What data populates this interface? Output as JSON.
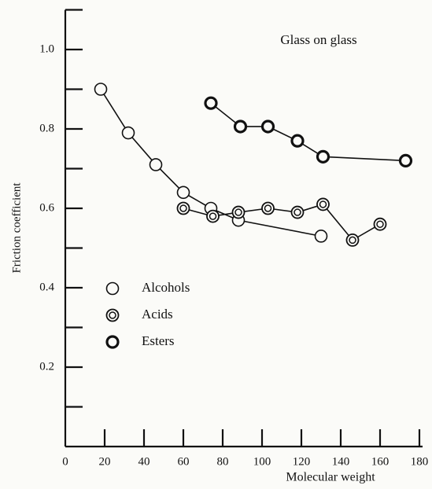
{
  "chart_data": {
    "type": "line",
    "annotation": "Glass on glass",
    "xlabel": "Molecular weight",
    "ylabel": "Friction coefficient",
    "xlim": [
      0,
      180
    ],
    "xticks": [
      0,
      20,
      40,
      60,
      80,
      100,
      120,
      140,
      160,
      180
    ],
    "ylim": [
      0,
      1.1
    ],
    "yticks": [
      0.2,
      0.4,
      0.6,
      0.8,
      {
        "value": 1,
        "label": "1.0"
      }
    ],
    "yminorticks": [
      0.1,
      0.3,
      0.5,
      0.7,
      0.9,
      1.1
    ],
    "legend": "lower left",
    "series": [
      {
        "name": "Alcohols",
        "color": "#111",
        "marker": "open",
        "x": [
          18,
          32,
          46,
          60,
          74,
          88,
          130
        ],
        "values": [
          0.9,
          0.79,
          0.71,
          0.64,
          0.6,
          0.57,
          0.53
        ]
      },
      {
        "name": "Acids",
        "color": "#111",
        "marker": "double",
        "x": [
          60,
          75,
          88,
          103,
          118,
          131,
          146,
          160
        ],
        "values": [
          0.6,
          0.58,
          0.59,
          0.6,
          0.59,
          0.61,
          0.52,
          0.56
        ]
      },
      {
        "name": "Esters",
        "color": "#111",
        "marker": "thick",
        "x": [
          74,
          89,
          103,
          118,
          131,
          173
        ],
        "values": [
          0.865,
          0.806,
          0.806,
          0.77,
          0.73,
          0.72
        ]
      }
    ]
  }
}
